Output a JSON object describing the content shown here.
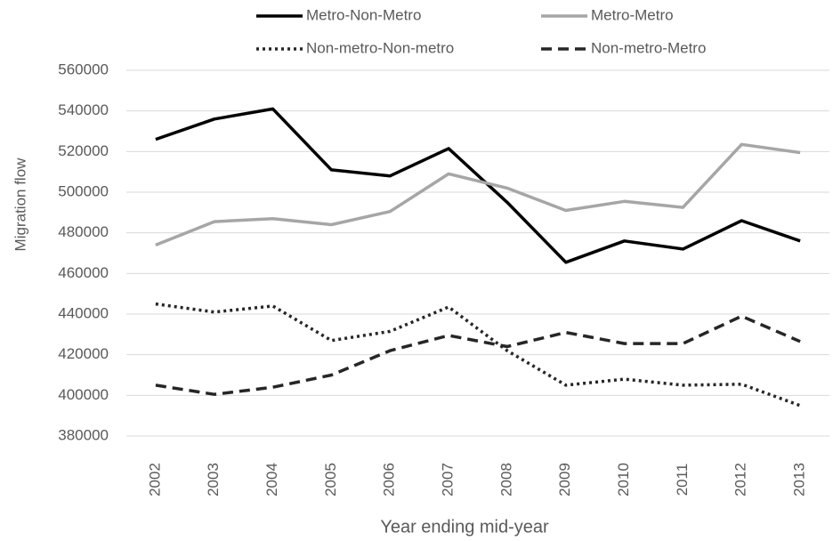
{
  "chart_data": {
    "type": "line",
    "x_label": "Year ending mid-year",
    "y_label": "Migration flow",
    "categories": [
      "2002",
      "2003",
      "2004",
      "2005",
      "2006",
      "2007",
      "2008",
      "2009",
      "2010",
      "2011",
      "2012",
      "2013"
    ],
    "series": [
      {
        "name": "Metro-Non-Metro",
        "color": "#000000",
        "dash": "solid",
        "values": [
          526000,
          536000,
          541000,
          511000,
          508000,
          521500,
          495000,
          465500,
          476000,
          472000,
          486000,
          476000
        ]
      },
      {
        "name": "Metro-Metro",
        "color": "#a6a6a6",
        "dash": "solid",
        "values": [
          474000,
          485500,
          487000,
          484000,
          490500,
          509000,
          502000,
          491000,
          495500,
          492500,
          523500,
          519500
        ]
      },
      {
        "name": "Non-metro-Non-metro",
        "color": "#262626",
        "dash": "dotted",
        "values": [
          445000,
          441000,
          444000,
          427000,
          431500,
          443500,
          422000,
          405000,
          408000,
          405000,
          405500,
          395000
        ]
      },
      {
        "name": "Non-metro-Metro",
        "color": "#262626",
        "dash": "dashed",
        "values": [
          405000,
          400500,
          404000,
          410000,
          422000,
          429500,
          424000,
          431000,
          425500,
          425500,
          439000,
          426500
        ]
      }
    ],
    "ylim": [
      380000,
      560000
    ],
    "yticks": [
      380000,
      400000,
      420000,
      440000,
      460000,
      480000,
      500000,
      520000,
      540000,
      560000
    ],
    "grid": true,
    "legend": "top"
  }
}
